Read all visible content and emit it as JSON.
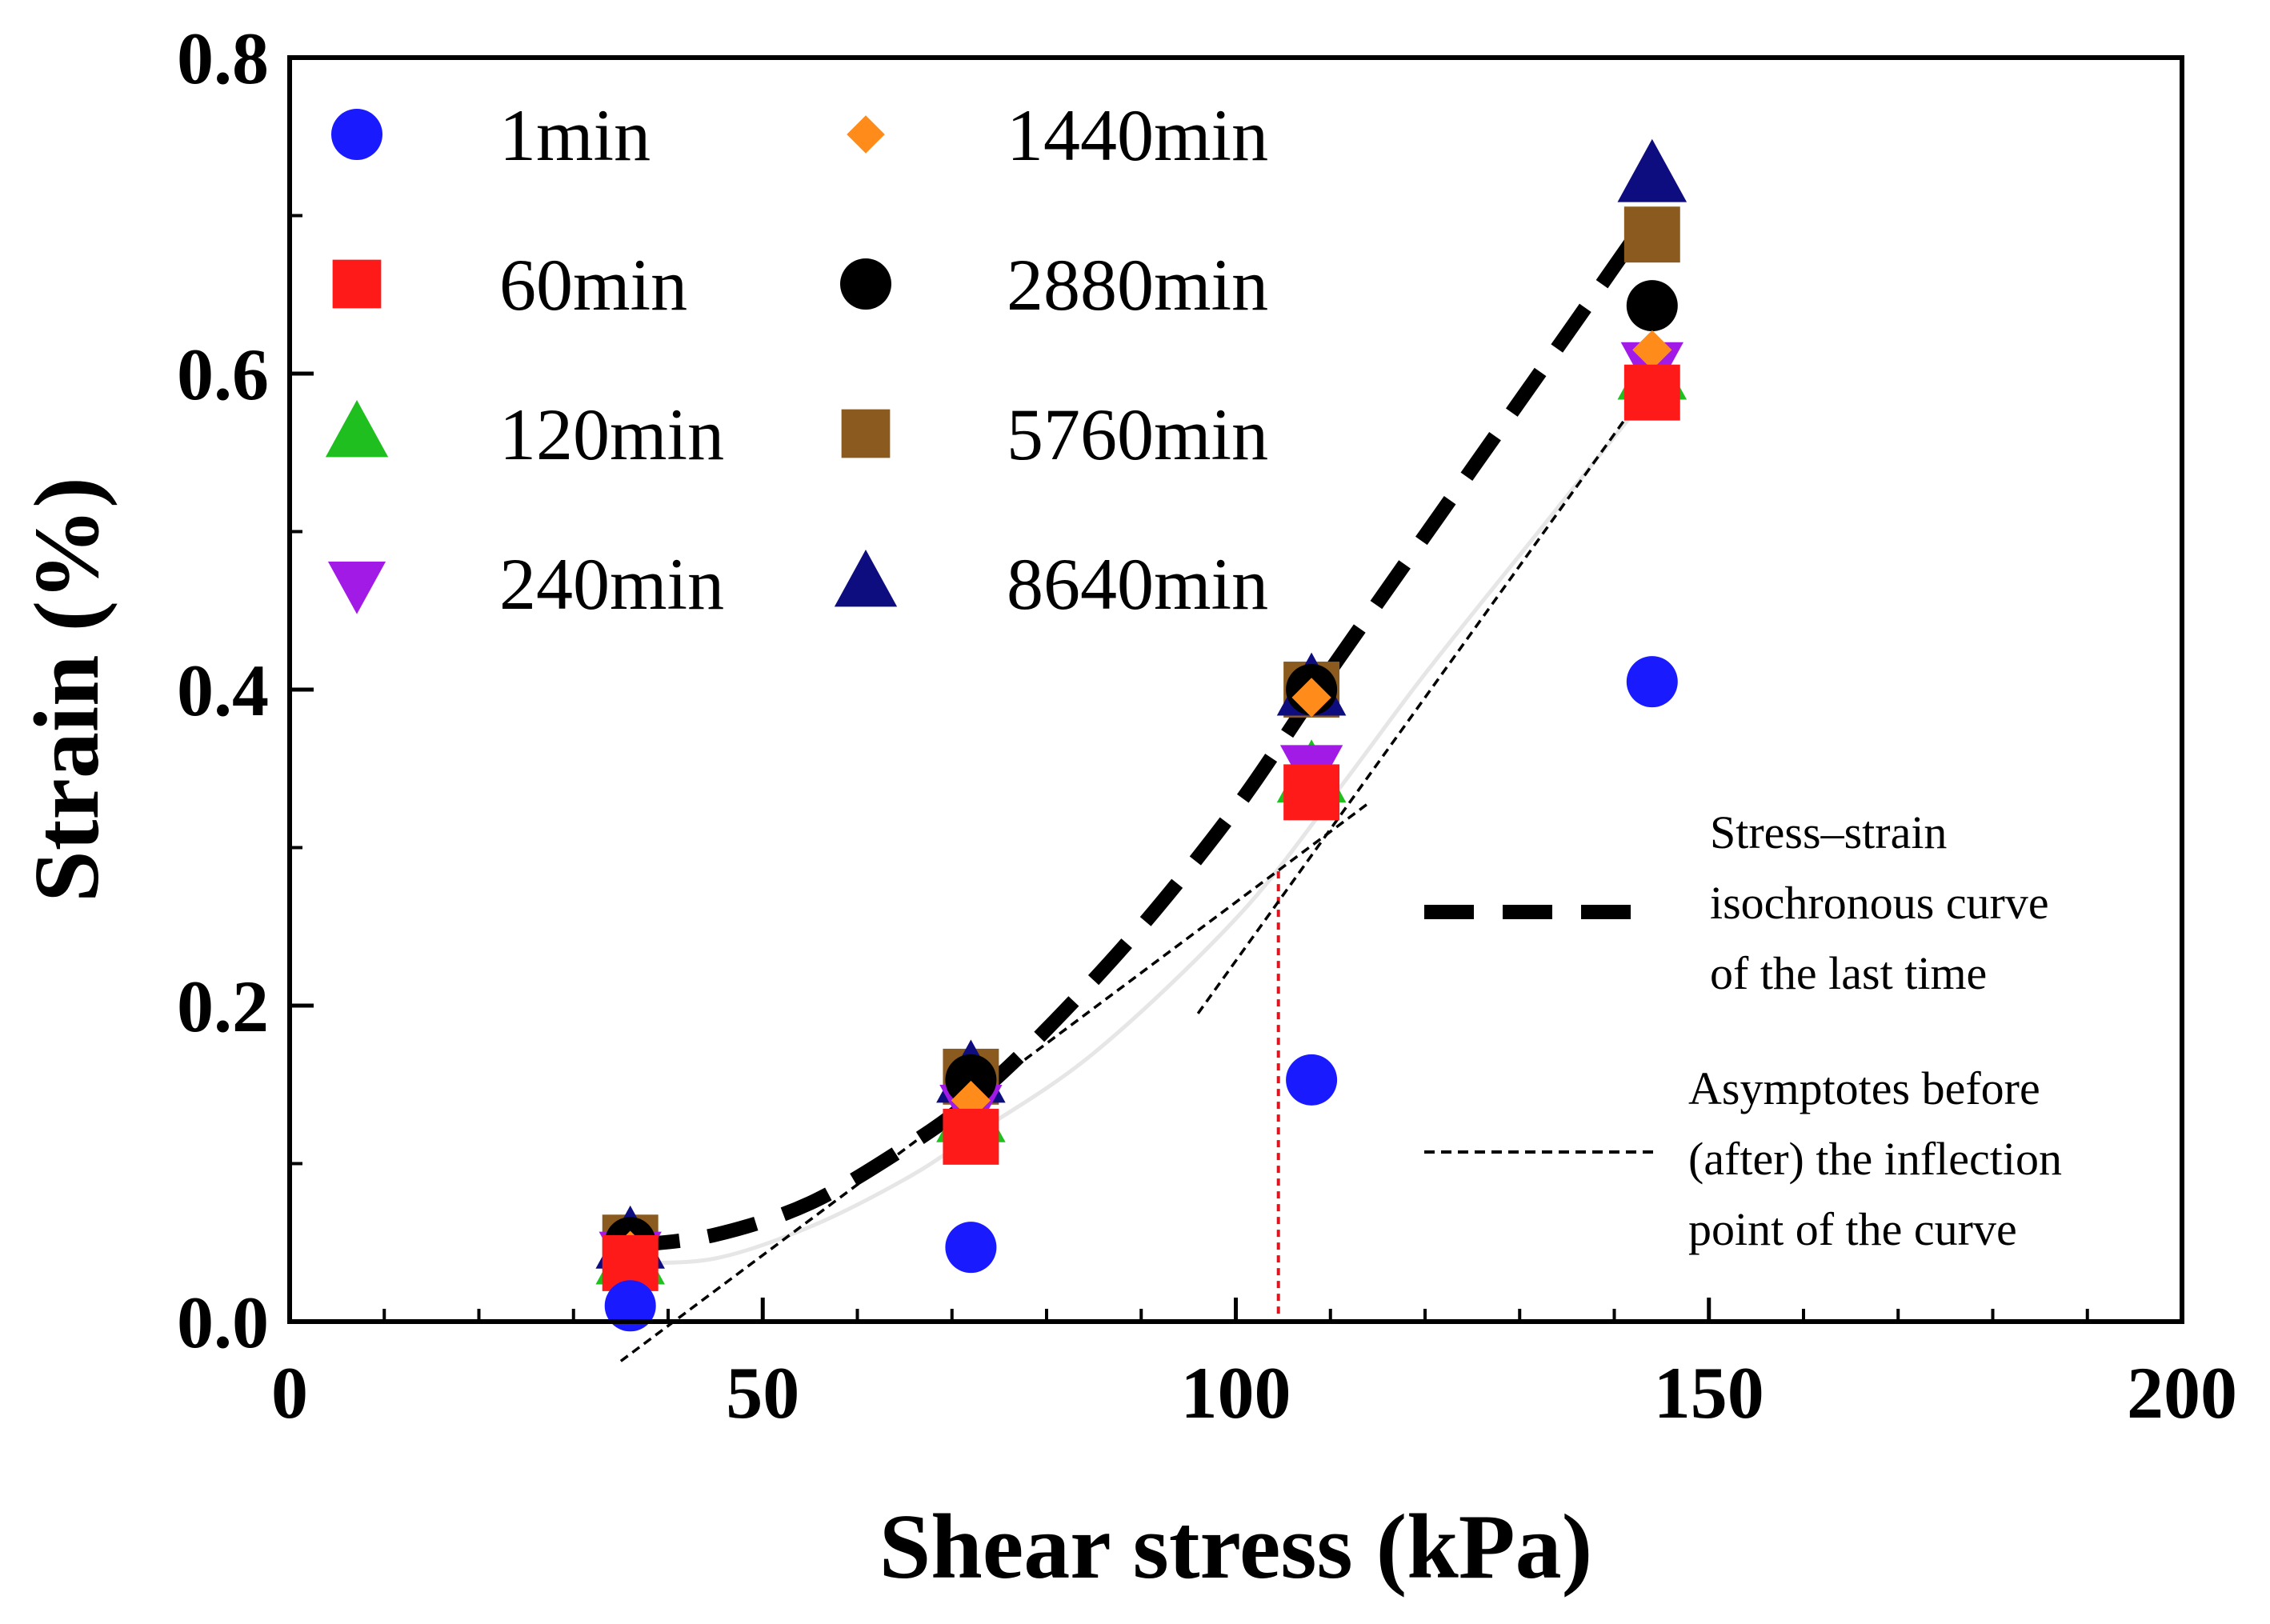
{
  "chart_data": {
    "type": "scatter",
    "xlabel": "Shear stress (kPa)",
    "ylabel": "Strain (%)",
    "xlim": [
      0,
      200
    ],
    "ylim": [
      0,
      0.8
    ],
    "x_ticks": [
      0,
      50,
      100,
      150,
      200
    ],
    "x_tick_labels": [
      "0",
      "50",
      "100",
      "150",
      "200"
    ],
    "y_ticks": [
      0.0,
      0.2,
      0.4,
      0.6,
      0.8
    ],
    "y_tick_labels": [
      "0.0",
      "0.2",
      "0.4",
      "0.6",
      "0.8"
    ],
    "x": [
      36,
      72,
      108,
      144
    ],
    "series": [
      {
        "name": "1min",
        "marker": "circle",
        "color": "#1a1aff",
        "values": [
          0.01,
          0.047,
          0.153,
          0.405
        ]
      },
      {
        "name": "60min",
        "marker": "square",
        "color": "#ff1a1a",
        "values": [
          0.037,
          0.117,
          0.335,
          0.588
        ]
      },
      {
        "name": "120min",
        "marker": "triangle-up",
        "color": "#1fbf1f",
        "values": [
          0.04,
          0.13,
          0.345,
          0.6
        ]
      },
      {
        "name": "240min",
        "marker": "triangle-down",
        "color": "#a21ae6",
        "values": [
          0.042,
          0.135,
          0.35,
          0.605
        ]
      },
      {
        "name": "1440min",
        "marker": "diamond",
        "color": "#ff8c1a",
        "values": [
          0.045,
          0.14,
          0.395,
          0.615
        ]
      },
      {
        "name": "2880min",
        "marker": "circle",
        "color": "#000000",
        "values": [
          0.05,
          0.153,
          0.4,
          0.643
        ]
      },
      {
        "name": "5760min",
        "marker": "square",
        "color": "#8b5a1f",
        "values": [
          0.05,
          0.155,
          0.4,
          0.688
        ]
      },
      {
        "name": "8640min",
        "marker": "triangle-up",
        "color": "#0d0d80",
        "values": [
          0.05,
          0.155,
          0.4,
          0.725
        ]
      }
    ],
    "isochronous_curve": {
      "label": "Stress–strain isochronous curve of the last time",
      "x": [
        36,
        45,
        55,
        65,
        72,
        80,
        90,
        100,
        108,
        115,
        125,
        135,
        142
      ],
      "y": [
        0.048,
        0.055,
        0.075,
        0.11,
        0.14,
        0.185,
        0.25,
        0.325,
        0.395,
        0.455,
        0.54,
        0.625,
        0.685
      ]
    },
    "faint_curve": {
      "x": [
        36,
        45,
        55,
        65,
        72,
        85,
        100,
        110,
        120,
        132,
        144
      ],
      "y": [
        0.037,
        0.04,
        0.06,
        0.09,
        0.117,
        0.17,
        0.255,
        0.33,
        0.41,
        0.5,
        0.59
      ]
    },
    "asymptotes": {
      "label": "Asymptotes before (after) the inflection point of the curve",
      "before": {
        "x": [
          35,
          114
        ],
        "y": [
          -0.025,
          0.328
        ]
      },
      "after": {
        "x": [
          96,
          144
        ],
        "y": [
          0.195,
          0.595
        ]
      }
    },
    "inflection_line": {
      "x": 104.5,
      "y": 0.285,
      "color": "#e0141c"
    },
    "legend_position": "top-left",
    "annotations": [
      {
        "lines": [
          "Stress–strain",
          "isochronous curve",
          "of the last time"
        ],
        "style": "thick-dashed"
      },
      {
        "lines": [
          "Asymptotes before",
          "(after) the inflection",
          "point of the curve"
        ],
        "style": "thin-dashed"
      }
    ]
  }
}
